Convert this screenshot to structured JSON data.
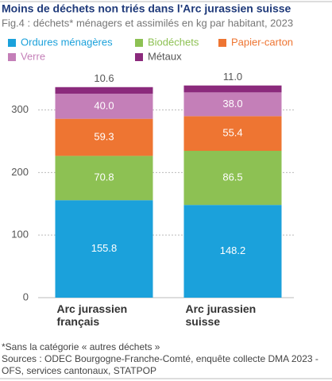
{
  "chart_data": {
    "type": "stacked-bar",
    "title": "Moins de déchets non triés dans l'Arc jurassien suisse",
    "subtitle": "Fig.4 : déchets* ménagers et assimilés en kg par habitant, 2023",
    "categories": [
      "Arc jurassien français",
      "Arc jurassien suisse"
    ],
    "series": [
      {
        "name": "Ordures ménagères",
        "color": "#1ba1db",
        "values": [
          155.8,
          148.2
        ]
      },
      {
        "name": "Biodéchets",
        "color": "#8dc153",
        "values": [
          70.8,
          86.5
        ]
      },
      {
        "name": "Papier-carton",
        "color": "#ee7532",
        "values": [
          59.3,
          55.4
        ]
      },
      {
        "name": "Verre",
        "color": "#c47fb8",
        "values": [
          40.0,
          38.0
        ],
        "value_labels": [
          "40.0",
          "38.0"
        ]
      },
      {
        "name": "Métaux",
        "color": "#8b2a7c",
        "values": [
          10.6,
          11.0
        ],
        "value_labels": [
          "10.6",
          "11.0"
        ]
      }
    ],
    "ylim": [
      0,
      340
    ],
    "yticks": [
      0,
      100,
      200,
      300
    ],
    "grid": true,
    "notes": [
      "*Sans la catégorie « autres déchets »",
      "Sources : ODEC Bourgogne-Franche-Comté, enquête collecte DMA 2023 - OFS, services cantonaux, STATPOP"
    ]
  }
}
